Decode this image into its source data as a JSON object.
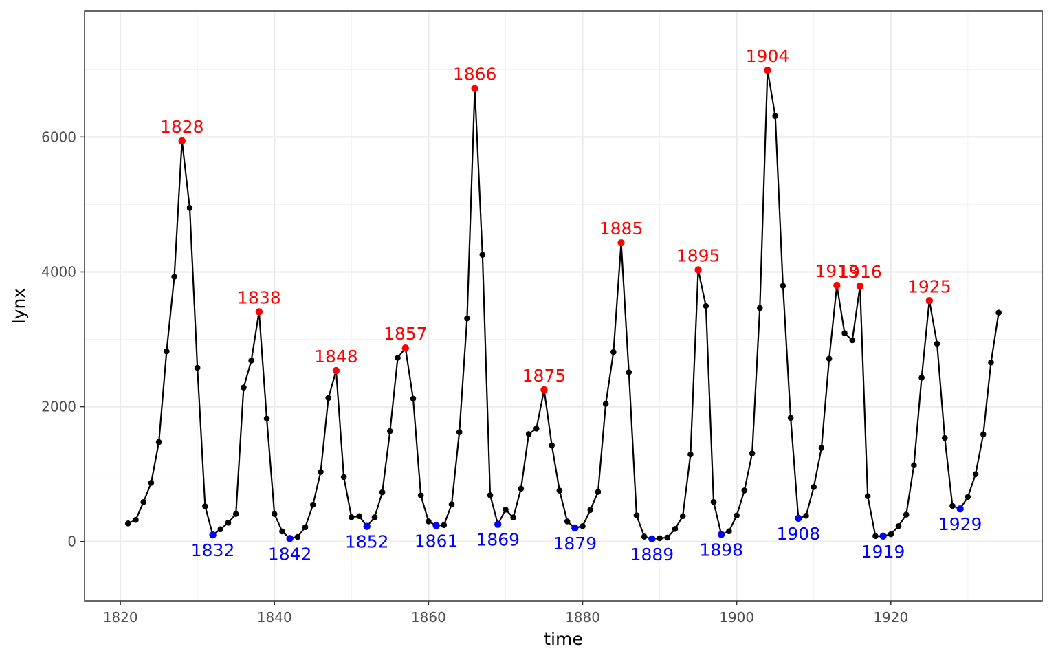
{
  "chart_data": {
    "type": "line",
    "xlabel": "time",
    "ylabel": "lynx",
    "xlim": [
      1815.35,
      1939.65
    ],
    "ylim": [
      -880,
      7870
    ],
    "x_ticks": [
      1820,
      1840,
      1860,
      1880,
      1900,
      1920
    ],
    "y_ticks": [
      0,
      2000,
      4000,
      6000
    ],
    "grid": true,
    "x": [
      1821,
      1822,
      1823,
      1824,
      1825,
      1826,
      1827,
      1828,
      1829,
      1830,
      1831,
      1832,
      1833,
      1834,
      1835,
      1836,
      1837,
      1838,
      1839,
      1840,
      1841,
      1842,
      1843,
      1844,
      1845,
      1846,
      1847,
      1848,
      1849,
      1850,
      1851,
      1852,
      1853,
      1854,
      1855,
      1856,
      1857,
      1858,
      1859,
      1860,
      1861,
      1862,
      1863,
      1864,
      1865,
      1866,
      1867,
      1868,
      1869,
      1870,
      1871,
      1872,
      1873,
      1874,
      1875,
      1876,
      1877,
      1878,
      1879,
      1880,
      1881,
      1882,
      1883,
      1884,
      1885,
      1886,
      1887,
      1888,
      1889,
      1890,
      1891,
      1892,
      1893,
      1894,
      1895,
      1896,
      1897,
      1898,
      1899,
      1900,
      1901,
      1902,
      1903,
      1904,
      1905,
      1906,
      1907,
      1908,
      1909,
      1910,
      1911,
      1912,
      1913,
      1914,
      1915,
      1916,
      1917,
      1918,
      1919,
      1920,
      1921,
      1922,
      1923,
      1924,
      1925,
      1926,
      1927,
      1928,
      1929,
      1930,
      1931,
      1932,
      1933,
      1934
    ],
    "series": [
      {
        "values": [
          269,
          321,
          585,
          871,
          1475,
          2821,
          3928,
          5943,
          4950,
          2577,
          523,
          98,
          184,
          279,
          409,
          2285,
          2685,
          3409,
          1824,
          409,
          151,
          45,
          68,
          213,
          546,
          1033,
          2129,
          2536,
          957,
          361,
          377,
          225,
          360,
          731,
          1638,
          2725,
          2871,
          2119,
          684,
          299,
          236,
          245,
          552,
          1623,
          3311,
          6721,
          4254,
          687,
          255,
          473,
          358,
          784,
          1594,
          1676,
          2251,
          1426,
          756,
          299,
          201,
          229,
          469,
          736,
          2042,
          2811,
          4431,
          2511,
          389,
          73,
          39,
          49,
          59,
          188,
          377,
          1292,
          4031,
          3495,
          587,
          105,
          153,
          387,
          758,
          1307,
          3465,
          6991,
          6313,
          3794,
          1836,
          345,
          382,
          808,
          1388,
          2713,
          3800,
          3091,
          2985,
          3790,
          674,
          81,
          80,
          108,
          229,
          399,
          1132,
          2432,
          3574,
          2935,
          1537,
          529,
          485,
          662,
          1000,
          1590,
          2657,
          3396
        ],
        "color": "#000000"
      }
    ],
    "peaks": [
      {
        "year": 1828,
        "value": 5943,
        "label": "1828"
      },
      {
        "year": 1838,
        "value": 3409,
        "label": "1838"
      },
      {
        "year": 1848,
        "value": 2536,
        "label": "1848"
      },
      {
        "year": 1857,
        "value": 2871,
        "label": "1857"
      },
      {
        "year": 1866,
        "value": 6721,
        "label": "1866"
      },
      {
        "year": 1875,
        "value": 2251,
        "label": "1875"
      },
      {
        "year": 1885,
        "value": 4431,
        "label": "1885"
      },
      {
        "year": 1895,
        "value": 4031,
        "label": "1895"
      },
      {
        "year": 1904,
        "value": 6991,
        "label": "1904"
      },
      {
        "year": 1913,
        "value": 3800,
        "label": "1913"
      },
      {
        "year": 1916,
        "value": 3790,
        "label": "1916"
      },
      {
        "year": 1925,
        "value": 3574,
        "label": "1925"
      }
    ],
    "troughs": [
      {
        "year": 1832,
        "value": 98,
        "label": "1832"
      },
      {
        "year": 1842,
        "value": 45,
        "label": "1842"
      },
      {
        "year": 1852,
        "value": 225,
        "label": "1852"
      },
      {
        "year": 1861,
        "value": 236,
        "label": "1861"
      },
      {
        "year": 1869,
        "value": 255,
        "label": "1869"
      },
      {
        "year": 1879,
        "value": 201,
        "label": "1879"
      },
      {
        "year": 1889,
        "value": 39,
        "label": "1889"
      },
      {
        "year": 1898,
        "value": 105,
        "label": "1898"
      },
      {
        "year": 1908,
        "value": 345,
        "label": "1908"
      },
      {
        "year": 1919,
        "value": 80,
        "label": "1919"
      },
      {
        "year": 1929,
        "value": 485,
        "label": "1929"
      }
    ],
    "colors": {
      "line": "#000000",
      "peak": "#ff0000",
      "trough": "#0000ff",
      "grid_major": "#ebebeb",
      "grid_minor": "#f3f3f3",
      "panel_border": "#333333",
      "tick_text": "#4d4d4d"
    }
  }
}
